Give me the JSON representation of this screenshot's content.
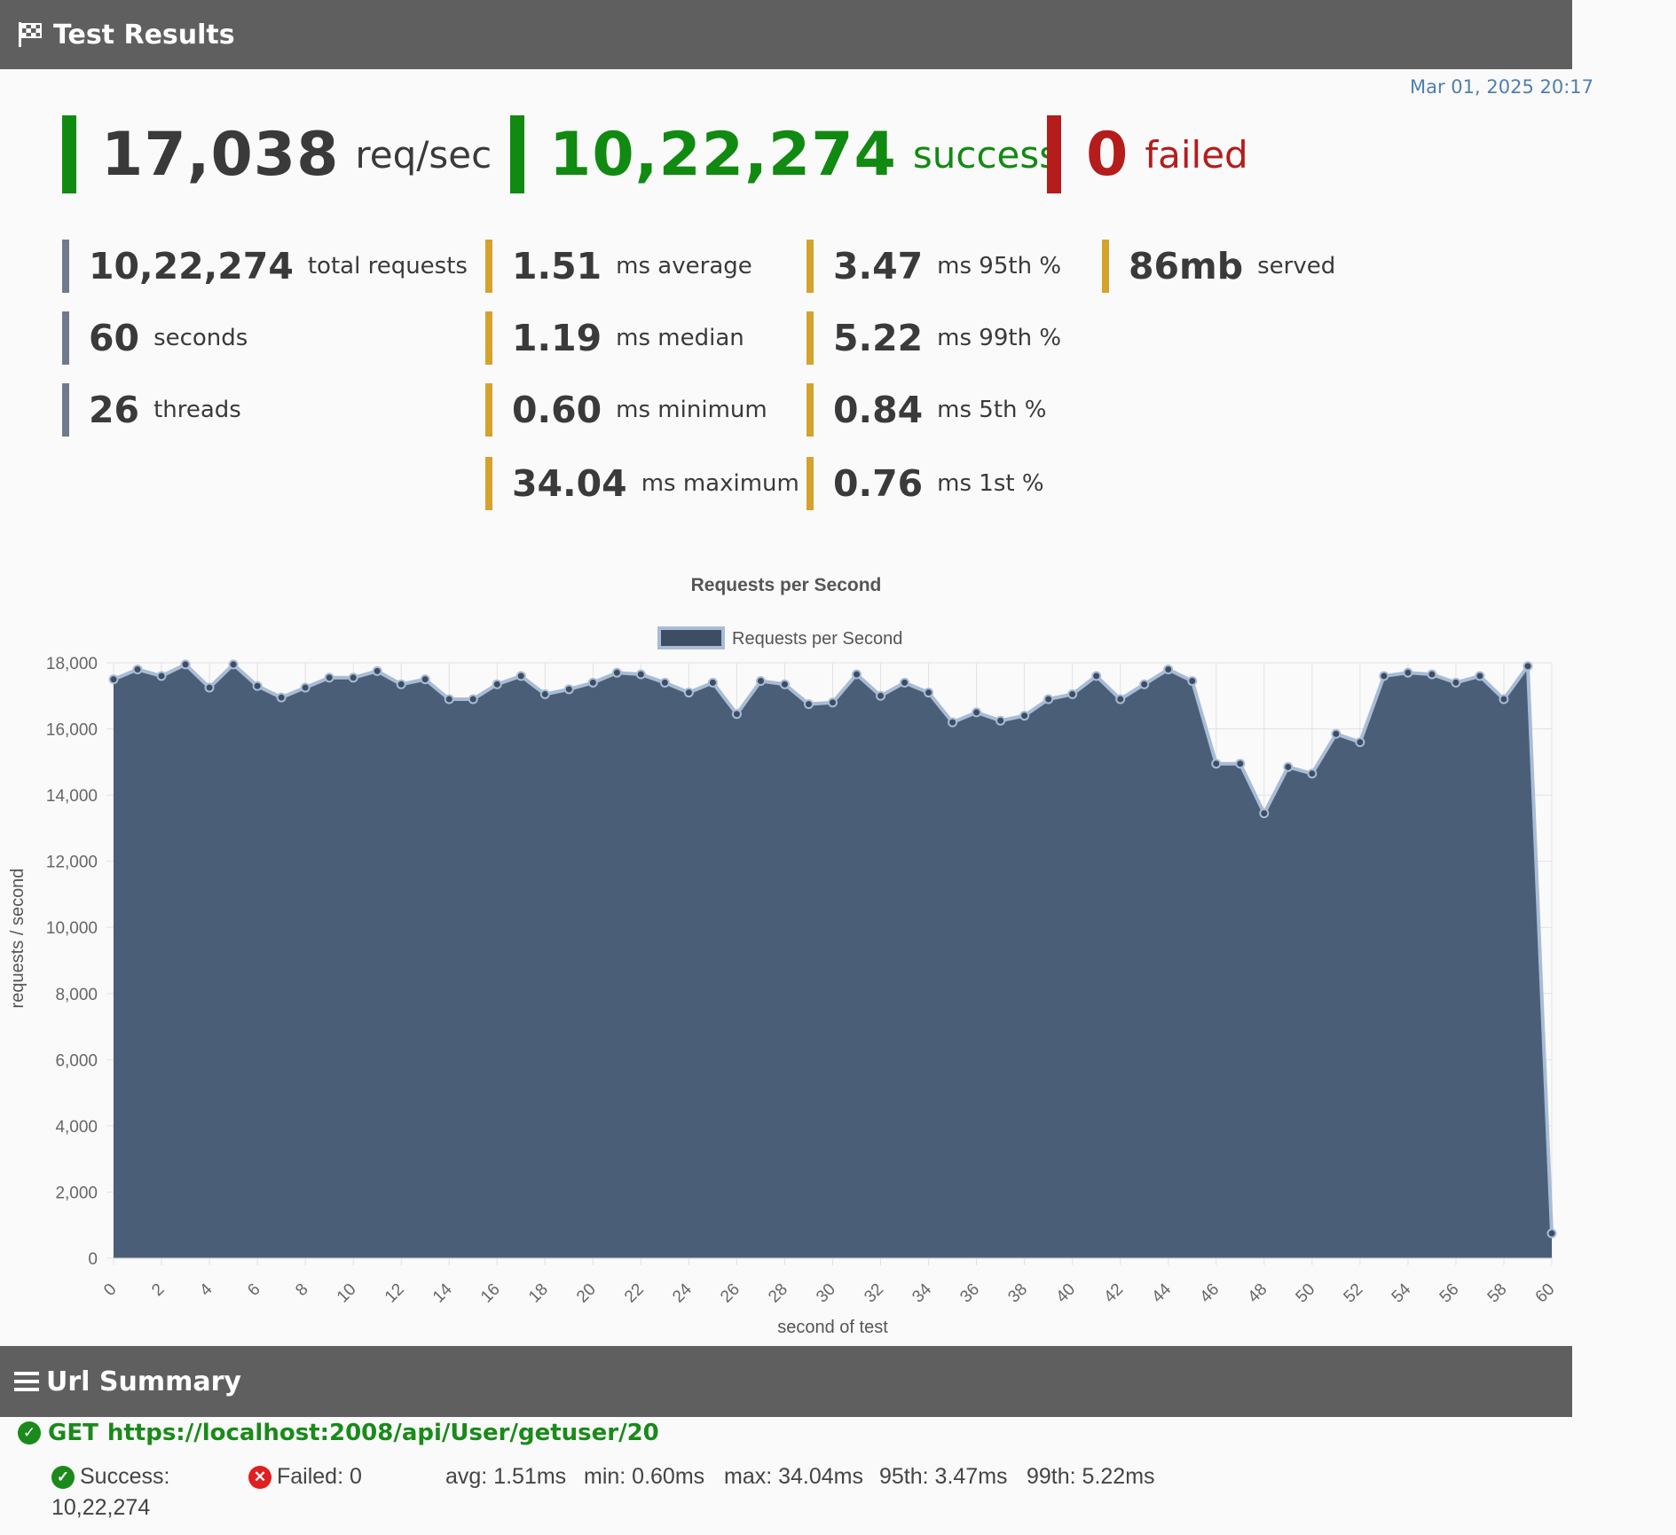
{
  "results_header": {
    "title": "Test Results",
    "icon": "checkered-flag-icon"
  },
  "timestamp": "Mar 01, 2025 20:17",
  "kpis": {
    "rps": {
      "value": "17,038",
      "label": "req/sec",
      "color": "#118a11"
    },
    "success": {
      "value": "10,22,274",
      "label": "success",
      "color": "#118a11"
    },
    "failed": {
      "value": "0",
      "label": "failed",
      "color": "#b51c1c"
    }
  },
  "stats": {
    "total_requests": {
      "value": "10,22,274",
      "label": "total requests"
    },
    "seconds": {
      "value": "60",
      "label": "seconds"
    },
    "threads": {
      "value": "26",
      "label": "threads"
    },
    "average": {
      "value": "1.51",
      "label": "ms average"
    },
    "median": {
      "value": "1.19",
      "label": "ms median"
    },
    "minimum": {
      "value": "0.60",
      "label": "ms minimum"
    },
    "maximum": {
      "value": "34.04",
      "label": "ms maximum"
    },
    "p95": {
      "value": "3.47",
      "label": "ms 95th %"
    },
    "p99": {
      "value": "5.22",
      "label": "ms 99th %"
    },
    "p5": {
      "value": "0.84",
      "label": "ms 5th %"
    },
    "p1": {
      "value": "0.76",
      "label": "ms 1st %"
    },
    "served": {
      "value": "86mb",
      "label": "served"
    }
  },
  "chart_data": {
    "type": "area",
    "title": "Requests per Second",
    "xlabel": "second of test",
    "ylabel": "requests / second",
    "legend": "top-center",
    "grid": true,
    "ylim": [
      0,
      18000
    ],
    "xlim": [
      0,
      60
    ],
    "fill_color": "#4a5e78",
    "line_color": "#a9bcd6",
    "series": [
      {
        "name": "Requests per Second",
        "x": [
          0,
          1,
          2,
          3,
          4,
          5,
          6,
          7,
          8,
          9,
          10,
          11,
          12,
          13,
          14,
          15,
          16,
          17,
          18,
          19,
          20,
          21,
          22,
          23,
          24,
          25,
          26,
          27,
          28,
          29,
          30,
          31,
          32,
          33,
          34,
          35,
          36,
          37,
          38,
          39,
          40,
          41,
          42,
          43,
          44,
          45,
          46,
          47,
          48,
          49,
          50,
          51,
          52,
          53,
          54,
          55,
          56,
          57,
          58,
          59,
          60
        ],
        "values": [
          17500,
          17800,
          17600,
          17950,
          17250,
          17950,
          17300,
          16950,
          17250,
          17550,
          17550,
          17750,
          17350,
          17500,
          16900,
          16900,
          17350,
          17600,
          17050,
          17200,
          17400,
          17700,
          17650,
          17400,
          17100,
          17400,
          16450,
          17450,
          17350,
          16750,
          16800,
          17650,
          17000,
          17400,
          17100,
          16200,
          16500,
          16250,
          16400,
          16900,
          17050,
          17600,
          16900,
          17350,
          17800,
          17450,
          14950,
          14950,
          13450,
          14850,
          14650,
          15850,
          15600,
          17600,
          17700,
          17650,
          17400,
          17600,
          16900,
          17900,
          750
        ]
      }
    ],
    "x_ticks": [
      "0",
      "2",
      "4",
      "6",
      "8",
      "10",
      "12",
      "14",
      "16",
      "18",
      "20",
      "22",
      "24",
      "26",
      "28",
      "30",
      "32",
      "34",
      "36",
      "38",
      "40",
      "42",
      "44",
      "46",
      "48",
      "50",
      "52",
      "54",
      "56",
      "58",
      "60"
    ],
    "y_ticks": [
      "0",
      "2,000",
      "4,000",
      "6,000",
      "8,000",
      "10,000",
      "12,000",
      "14,000",
      "16,000",
      "18,000"
    ]
  },
  "url_summary": {
    "title": "Url Summary",
    "method": "GET",
    "url": "https://localhost:2008/api/User/getuser/20",
    "success_label": "Success:",
    "success_value": "10,22,274",
    "failed_text": "Failed: 0",
    "avg": "avg: 1.51ms",
    "min": "min: 0.60ms",
    "max": "max: 34.04ms",
    "p95": "95th: 3.47ms",
    "p99": "99th: 5.22ms"
  }
}
